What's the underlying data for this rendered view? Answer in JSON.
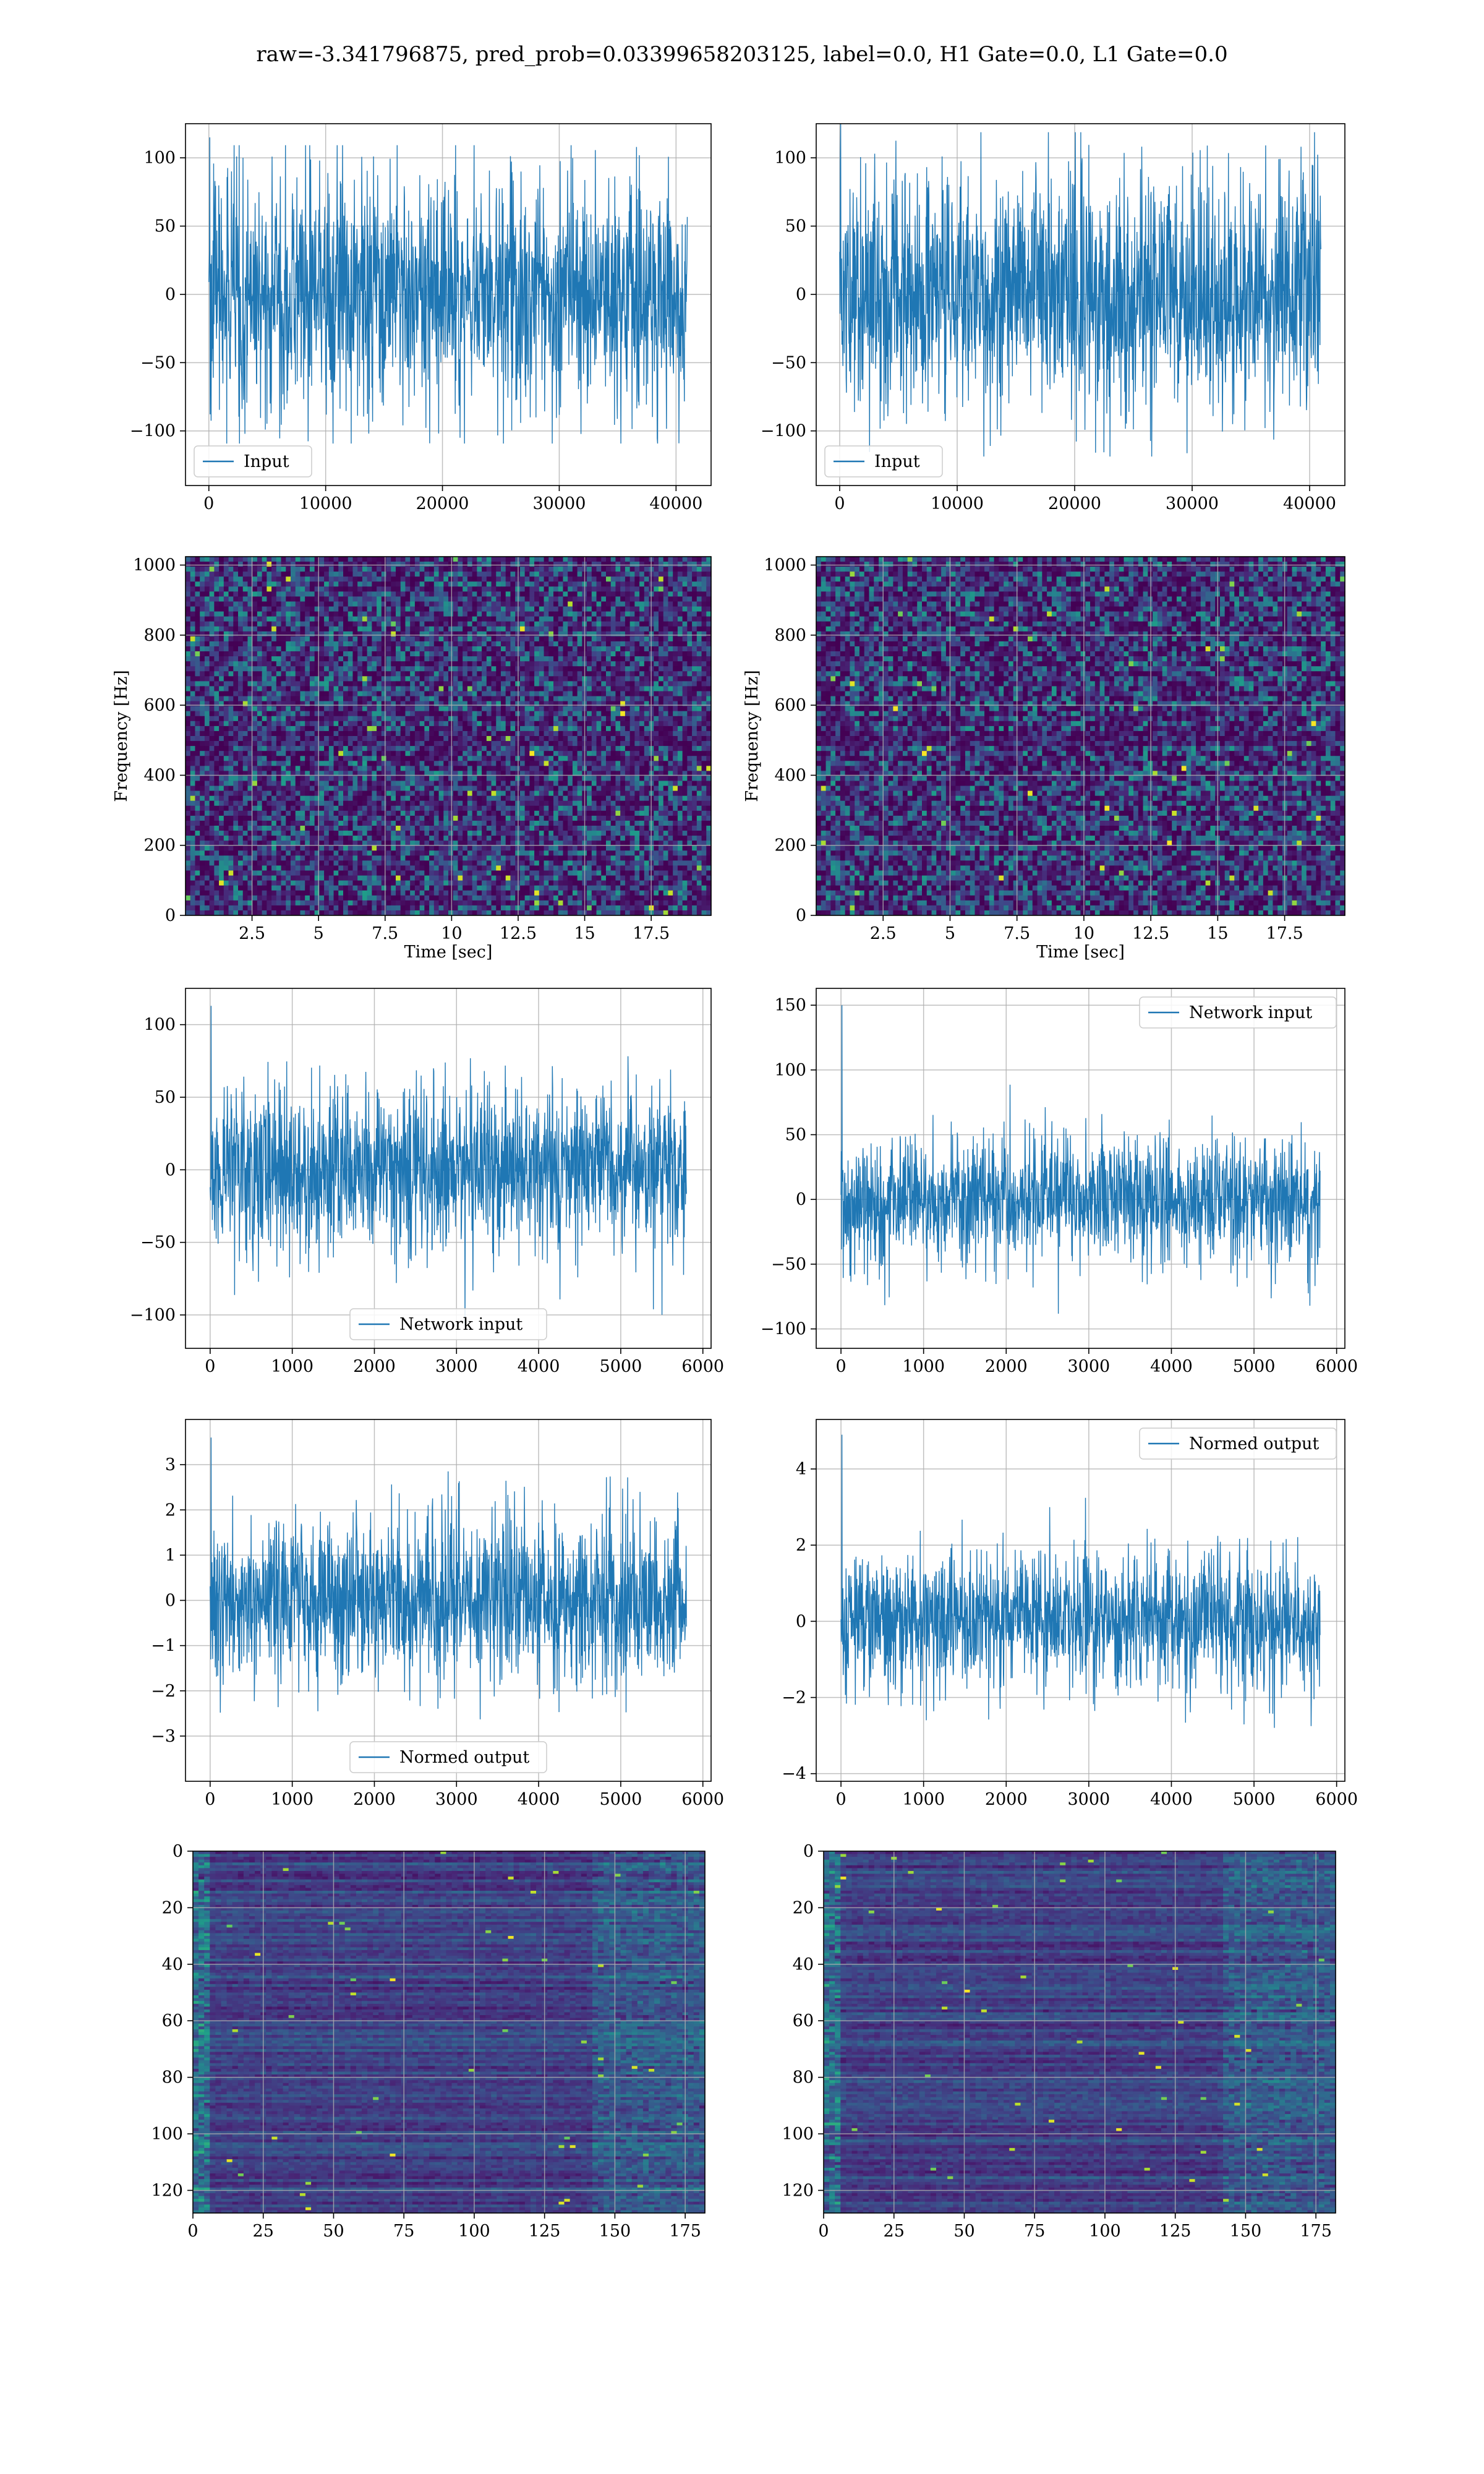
{
  "figure": {
    "title": "raw=-3.341796875, pred_prob=0.03399658203125, label=0.0, H1 Gate=0.0, L1 Gate=0.0"
  },
  "colors": {
    "line": "#1f77b4",
    "grid": "#b0b0b0",
    "axes": "#000000",
    "viridis_dark": "#440154",
    "viridis_mid": "#21918c",
    "viridis_light": "#fde725"
  },
  "chart_data": [
    {
      "id": "input_h1",
      "type": "line",
      "style": "noise",
      "xlim": [
        -2000,
        43000
      ],
      "ylim": [
        -140,
        125
      ],
      "xticks": [
        0,
        10000,
        20000,
        30000,
        40000
      ],
      "yticks": [
        -100,
        -50,
        0,
        50,
        100
      ],
      "x_range": [
        0,
        40960
      ],
      "band": 75,
      "peak": 115,
      "series": [
        {
          "name": "Input"
        }
      ],
      "legend": "lower-left",
      "xlabel": "",
      "ylabel": "",
      "grid": true
    },
    {
      "id": "input_l1",
      "type": "line",
      "style": "noise",
      "xlim": [
        -2000,
        43000
      ],
      "ylim": [
        -140,
        125
      ],
      "xticks": [
        0,
        10000,
        20000,
        30000,
        40000
      ],
      "yticks": [
        -100,
        -50,
        0,
        50,
        100
      ],
      "x_range": [
        0,
        40960
      ],
      "band": 75,
      "peak": 125,
      "series": [
        {
          "name": "Input"
        }
      ],
      "legend": "lower-left",
      "xlabel": "",
      "ylabel": "",
      "grid": true
    },
    {
      "id": "spectrogram_h1",
      "type": "heatmap",
      "style": "spectrogram",
      "xlim": [
        0,
        19.75
      ],
      "ylim": [
        0,
        1024
      ],
      "xticks": [
        2.5,
        5.0,
        7.5,
        10.0,
        12.5,
        15.0,
        17.5
      ],
      "yticks": [
        0,
        200,
        400,
        600,
        800,
        1000
      ],
      "xlabel": "Time [sec]",
      "ylabel": "Frequency [Hz]",
      "grid": true
    },
    {
      "id": "spectrogram_l1",
      "type": "heatmap",
      "style": "spectrogram",
      "xlim": [
        0,
        19.75
      ],
      "ylim": [
        0,
        1024
      ],
      "xticks": [
        2.5,
        5.0,
        7.5,
        10.0,
        12.5,
        15.0,
        17.5
      ],
      "yticks": [
        0,
        200,
        400,
        600,
        800,
        1000
      ],
      "xlabel": "Time [sec]",
      "ylabel": "Frequency [Hz]",
      "grid": true
    },
    {
      "id": "network_input_h1",
      "type": "line",
      "style": "noise",
      "xlim": [
        -300,
        6100
      ],
      "ylim": [
        -123,
        125
      ],
      "xticks": [
        0,
        1000,
        2000,
        3000,
        4000,
        5000,
        6000
      ],
      "yticks": [
        -100,
        -50,
        0,
        50,
        100
      ],
      "x_range": [
        0,
        5800
      ],
      "band": 50,
      "peak": 113,
      "series": [
        {
          "name": "Network input"
        }
      ],
      "legend": "lower-center",
      "xlabel": "",
      "ylabel": "",
      "grid": true
    },
    {
      "id": "network_input_l1",
      "type": "line",
      "style": "noise",
      "xlim": [
        -300,
        6100
      ],
      "ylim": [
        -115,
        163
      ],
      "xticks": [
        0,
        1000,
        2000,
        3000,
        4000,
        5000,
        6000
      ],
      "yticks": [
        -100,
        -50,
        0,
        50,
        100,
        150
      ],
      "x_range": [
        0,
        5800
      ],
      "band": 45,
      "peak": 150,
      "series": [
        {
          "name": "Network input"
        }
      ],
      "legend": "upper-right",
      "xlabel": "",
      "ylabel": "",
      "grid": true
    },
    {
      "id": "normed_output_h1",
      "type": "line",
      "style": "noise",
      "xlim": [
        -300,
        6100
      ],
      "ylim": [
        -4.0,
        4.0
      ],
      "xticks": [
        0,
        1000,
        2000,
        3000,
        4000,
        5000,
        6000
      ],
      "yticks": [
        -3,
        -2,
        -1,
        0,
        1,
        2,
        3
      ],
      "x_range": [
        0,
        5800
      ],
      "band": 1.6,
      "peak": 3.6,
      "series": [
        {
          "name": "Normed output"
        }
      ],
      "legend": "lower-center",
      "xlabel": "",
      "ylabel": "",
      "grid": true
    },
    {
      "id": "normed_output_l1",
      "type": "line",
      "style": "noise",
      "xlim": [
        -300,
        6100
      ],
      "ylim": [
        -4.2,
        5.3
      ],
      "xticks": [
        0,
        1000,
        2000,
        3000,
        4000,
        5000,
        6000
      ],
      "yticks": [
        -4,
        -2,
        0,
        2,
        4
      ],
      "x_range": [
        0,
        5800
      ],
      "band": 1.6,
      "peak": 4.9,
      "series": [
        {
          "name": "Normed output"
        }
      ],
      "legend": "upper-right",
      "xlabel": "",
      "ylabel": "",
      "grid": true
    },
    {
      "id": "features_h1",
      "type": "heatmap",
      "style": "features",
      "xlim": [
        0,
        182
      ],
      "ylim": [
        128,
        0
      ],
      "xticks": [
        0,
        25,
        50,
        75,
        100,
        125,
        150,
        175
      ],
      "yticks": [
        0,
        20,
        40,
        60,
        80,
        100,
        120
      ],
      "xlabel": "",
      "ylabel": "",
      "grid": true
    },
    {
      "id": "features_l1",
      "type": "heatmap",
      "style": "features",
      "xlim": [
        0,
        182
      ],
      "ylim": [
        128,
        0
      ],
      "xticks": [
        0,
        25,
        50,
        75,
        100,
        125,
        150,
        175
      ],
      "yticks": [
        0,
        20,
        40,
        60,
        80,
        100,
        120
      ],
      "xlabel": "",
      "ylabel": "",
      "grid": true
    }
  ]
}
